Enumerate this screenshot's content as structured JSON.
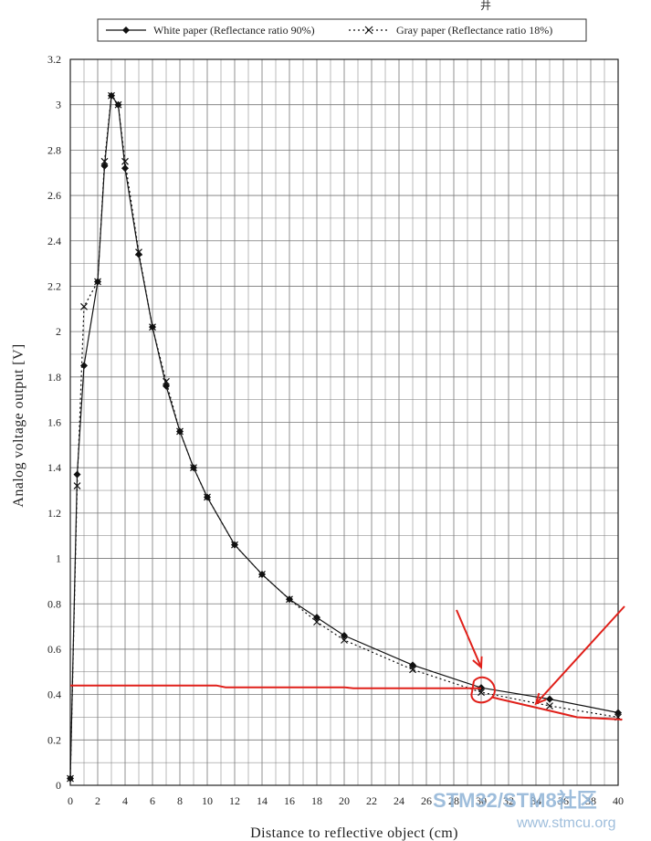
{
  "chart_data": {
    "type": "line",
    "xlabel": "Distance to reflective object (cm)",
    "ylabel": "Analog voltage output [V]",
    "xlim": [
      0,
      40
    ],
    "ylim": [
      0,
      3.2
    ],
    "xticks": [
      0,
      2,
      4,
      6,
      8,
      10,
      12,
      14,
      16,
      18,
      20,
      22,
      24,
      26,
      28,
      30,
      32,
      34,
      36,
      38,
      40
    ],
    "yticks": [
      0,
      0.2,
      0.4,
      0.6,
      0.8,
      1,
      1.2,
      1.4,
      1.6,
      1.8,
      2,
      2.2,
      2.4,
      2.6,
      2.8,
      3,
      3.2
    ],
    "grid": true,
    "legend_position": "top",
    "series": [
      {
        "name": "White paper (Reflectance ratio 90%)",
        "marker": "diamond",
        "line_style": "solid",
        "color": "#111111",
        "x": [
          0,
          0.5,
          1,
          2,
          2.5,
          3,
          3.5,
          4,
          5,
          6,
          7,
          8,
          9,
          10,
          12,
          14,
          16,
          18,
          20,
          25,
          30,
          35,
          40
        ],
        "y": [
          0.03,
          1.37,
          1.85,
          2.22,
          2.73,
          3.04,
          3.0,
          2.72,
          2.34,
          2.02,
          1.76,
          1.56,
          1.4,
          1.27,
          1.06,
          0.93,
          0.82,
          0.74,
          0.66,
          0.53,
          0.43,
          0.38,
          0.32
        ]
      },
      {
        "name": "Gray paper (Reflectance ratio 18%)",
        "marker": "x",
        "line_style": "dotted",
        "color": "#111111",
        "x": [
          0,
          0.5,
          1,
          2,
          2.5,
          3,
          3.5,
          4,
          5,
          6,
          7,
          8,
          9,
          10,
          12,
          14,
          16,
          18,
          20,
          25,
          30,
          35,
          40
        ],
        "y": [
          0.03,
          1.32,
          2.11,
          2.22,
          2.75,
          3.04,
          3.0,
          2.75,
          2.35,
          2.02,
          1.78,
          1.56,
          1.4,
          1.27,
          1.06,
          0.93,
          0.82,
          0.72,
          0.64,
          0.51,
          0.41,
          0.35,
          0.3
        ]
      }
    ],
    "annotations": {
      "color": "#e0201a",
      "threshold_line": {
        "x_start": 0,
        "x_end": 30,
        "y": 0.44
      },
      "circle_center": {
        "x": 30,
        "y": 0.42
      },
      "arrow_targets": [
        {
          "x": 30,
          "y": 0.52
        },
        {
          "x": 34,
          "y": 0.36
        }
      ]
    }
  },
  "corner_mark": "井",
  "watermark": {
    "main": "STM32/STM8社区",
    "url": "www.stmcu.org"
  }
}
